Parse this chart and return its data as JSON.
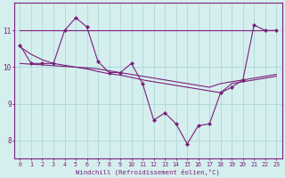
{
  "x": [
    0,
    1,
    2,
    3,
    4,
    5,
    6,
    7,
    8,
    9,
    10,
    11,
    12,
    13,
    14,
    15,
    16,
    17,
    18,
    19,
    20,
    21,
    22,
    23
  ],
  "line1": [
    10.6,
    10.1,
    10.1,
    10.1,
    11.0,
    11.35,
    11.1,
    10.15,
    9.85,
    9.85,
    10.1,
    9.55,
    8.55,
    8.75,
    8.45,
    7.9,
    8.4,
    8.45,
    9.3,
    9.45,
    9.65,
    11.15,
    11.0,
    11.0
  ],
  "line2_flat": [
    11.0,
    11.0,
    11.0,
    11.0,
    11.0,
    11.0,
    11.0,
    11.0,
    11.0,
    11.0,
    11.0,
    11.0,
    11.0,
    11.0,
    11.0,
    11.0,
    11.0,
    11.0,
    11.0,
    11.0,
    11.0,
    11.0,
    11.0,
    11.0
  ],
  "line3_trend": [
    10.55,
    10.35,
    10.2,
    10.1,
    10.05,
    10.0,
    9.95,
    9.88,
    9.82,
    9.78,
    9.72,
    9.65,
    9.6,
    9.55,
    9.5,
    9.45,
    9.4,
    9.35,
    9.3,
    9.55,
    9.6,
    9.65,
    9.7,
    9.75
  ],
  "line4_trend2": [
    10.1,
    10.08,
    10.06,
    10.04,
    10.02,
    10.0,
    9.98,
    9.95,
    9.9,
    9.85,
    9.8,
    9.75,
    9.7,
    9.65,
    9.6,
    9.55,
    9.5,
    9.45,
    9.55,
    9.6,
    9.65,
    9.7,
    9.75,
    9.8
  ],
  "color": "#7B1F7A",
  "bg_color": "#d5eeee",
  "grid_color": "#aed8d8",
  "xlabel": "Windchill (Refroidissement éolien,°C)",
  "ylim": [
    7.5,
    11.75
  ],
  "xlim": [
    -0.5,
    23.5
  ],
  "yticks": [
    8,
    9,
    10,
    11
  ],
  "xticks": [
    0,
    1,
    2,
    3,
    4,
    5,
    6,
    7,
    8,
    9,
    10,
    11,
    12,
    13,
    14,
    15,
    16,
    17,
    18,
    19,
    20,
    21,
    22,
    23
  ]
}
